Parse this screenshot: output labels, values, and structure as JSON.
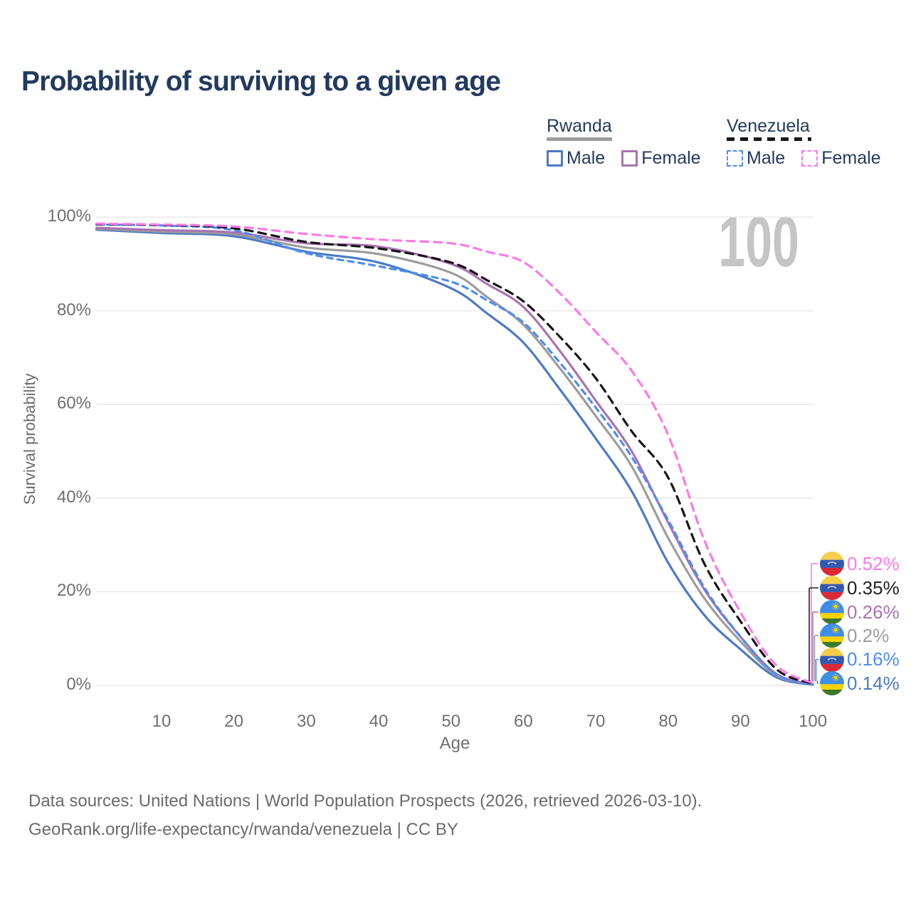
{
  "title": "Probability of surviving to a given age",
  "watermark": "100",
  "legend": {
    "groups": [
      {
        "country": "Rwanda",
        "line_style": "solid",
        "line_color": "#9c9c9c",
        "items": [
          {
            "label": "Male",
            "color": "#4c7bc4",
            "dashed": false
          },
          {
            "label": "Female",
            "color": "#aa73b0",
            "dashed": false
          }
        ]
      },
      {
        "country": "Venezuela",
        "line_style": "dashed",
        "line_color": "#161616",
        "items": [
          {
            "label": "Male",
            "color": "#4e8df2",
            "dashed": true
          },
          {
            "label": "Female",
            "color": "#fb7ae6",
            "dashed": true
          }
        ]
      }
    ]
  },
  "axes": {
    "y_label": "Survival probability",
    "x_label": "Age",
    "y_ticks": [
      "100%",
      "80%",
      "60%",
      "40%",
      "20%",
      "0%"
    ],
    "y_tick_values": [
      100,
      80,
      60,
      40,
      20,
      0
    ],
    "x_ticks": [
      "10",
      "20",
      "30",
      "40",
      "50",
      "60",
      "70",
      "80",
      "90",
      "100"
    ],
    "x_tick_values": [
      10,
      20,
      30,
      40,
      50,
      60,
      70,
      80,
      90,
      100
    ]
  },
  "end_labels": [
    {
      "flag": "venezuela",
      "value": "0.52%",
      "color": "#fb7ae6"
    },
    {
      "flag": "venezuela",
      "value": "0.35%",
      "color": "#222222"
    },
    {
      "flag": "rwanda",
      "value": "0.26%",
      "color": "#aa73b0"
    },
    {
      "flag": "rwanda",
      "value": "0.2%",
      "color": "#9c9c9c"
    },
    {
      "flag": "venezuela",
      "value": "0.16%",
      "color": "#4e8df2"
    },
    {
      "flag": "rwanda",
      "value": "0.14%",
      "color": "#4c7bc4"
    }
  ],
  "flag_colors": {
    "venezuela": {
      "yellow": "#F6CE49",
      "blue": "#3559AE",
      "red": "#DA2A35",
      "stars": "#ffffff"
    },
    "rwanda": {
      "blue": "#3F8EE5",
      "yellow": "#FAD201",
      "green": "#3D7A28",
      "sun": "#FAD201"
    }
  },
  "footer": {
    "line1": "Data sources: United Nations | World Population Prospects (2026, retrieved 2026-03-10).",
    "line2": "GeoRank.org/life-expectancy/rwanda/venezuela | CC BY"
  },
  "chart_data": {
    "type": "line",
    "title": "Probability of surviving to a given age",
    "xlabel": "Age",
    "ylabel": "Survival probability",
    "xlim": [
      1,
      100
    ],
    "ylim": [
      0,
      100
    ],
    "grid": "horizontal",
    "x": [
      1,
      10,
      20,
      30,
      40,
      50,
      55,
      60,
      65,
      70,
      75,
      80,
      85,
      90,
      95,
      100
    ],
    "series": [
      {
        "id": "venezuela-female",
        "name": "Venezuela Female",
        "color": "#fb7ae6",
        "style": "dashed",
        "dash": "11 8",
        "values": [
          98.6,
          98.4,
          98.0,
          96.4,
          95.2,
          94.4,
          92.6,
          90.4,
          83.8,
          75.5,
          67.1,
          53.5,
          31.0,
          15.6,
          4.2,
          0.52
        ],
        "end_value": "0.52%"
      },
      {
        "id": "venezuela-combined",
        "name": "Venezuela",
        "color": "#161616",
        "style": "dashed",
        "dash": "11 8",
        "values": [
          98.5,
          98.3,
          97.6,
          94.7,
          93.3,
          90.3,
          86.5,
          82.0,
          74.5,
          65.6,
          54.2,
          44.4,
          26.0,
          13.7,
          3.4,
          0.35
        ],
        "end_value": "0.35%"
      },
      {
        "id": "rwanda-female",
        "name": "Rwanda Female",
        "color": "#aa73b0",
        "style": "solid",
        "dash": "",
        "values": [
          97.7,
          97.2,
          96.7,
          94.4,
          93.7,
          90.0,
          85.7,
          80.8,
          71.5,
          60.8,
          49.9,
          34.8,
          20.5,
          10.4,
          2.4,
          0.26
        ],
        "end_value": "0.26%"
      },
      {
        "id": "rwanda-combined",
        "name": "Rwanda",
        "color": "#9c9c9c",
        "style": "solid",
        "dash": "",
        "values": [
          97.5,
          96.9,
          96.3,
          93.5,
          92.1,
          88.1,
          82.9,
          77.0,
          67.8,
          57.5,
          46.7,
          31.5,
          18.6,
          9.4,
          2.1,
          0.2
        ],
        "end_value": "0.2%"
      },
      {
        "id": "venezuela-male",
        "name": "Venezuela Male",
        "color": "#4e8df2",
        "style": "dashed",
        "dash": "8 7",
        "values": [
          98.4,
          98.2,
          97.2,
          92.3,
          89.5,
          86.2,
          82.2,
          77.5,
          69.0,
          59.3,
          48.7,
          35.3,
          20.9,
          10.4,
          2.3,
          0.16
        ],
        "end_value": "0.16%"
      },
      {
        "id": "rwanda-male",
        "name": "Rwanda Male",
        "color": "#4c7bc4",
        "style": "solid",
        "dash": "",
        "values": [
          97.3,
          96.6,
          95.9,
          92.6,
          90.3,
          84.8,
          79.4,
          73.2,
          63.3,
          52.7,
          41.4,
          26.2,
          15.0,
          7.7,
          1.7,
          0.14
        ],
        "end_value": "0.14%"
      }
    ]
  }
}
